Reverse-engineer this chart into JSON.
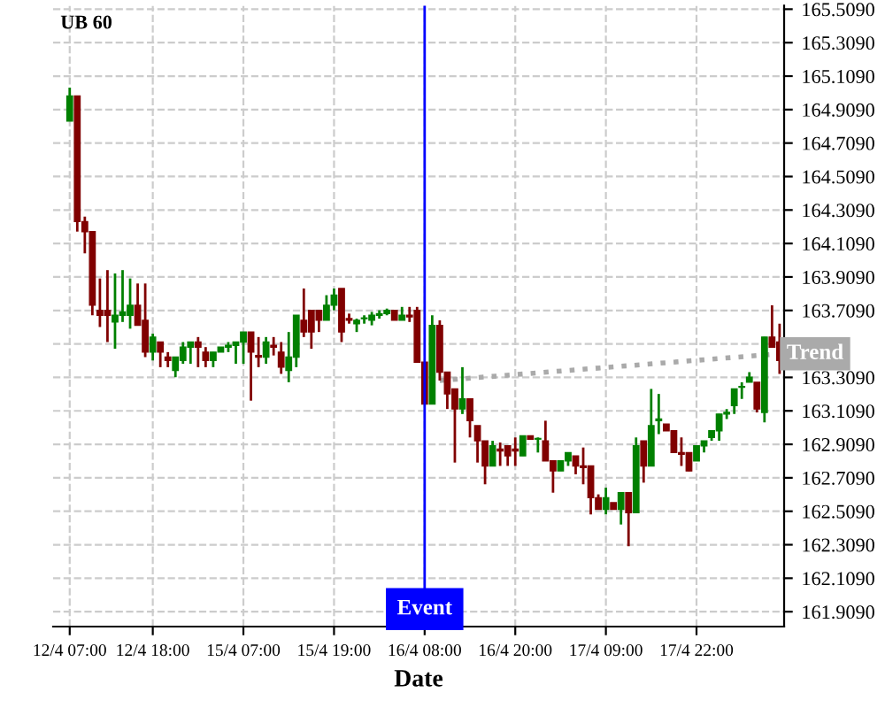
{
  "chart_data": {
    "type": "candlestick",
    "title": "UB 60",
    "xlabel": "Date",
    "categories": [
      "12/4 07:00",
      null,
      null,
      null,
      null,
      null,
      null,
      null,
      null,
      null,
      null,
      "12/4 18:00",
      null,
      null,
      null,
      null,
      null,
      null,
      null,
      null,
      null,
      null,
      null,
      "15/4 07:00",
      null,
      null,
      null,
      null,
      null,
      null,
      null,
      null,
      null,
      null,
      null,
      "15/4 19:00",
      null,
      null,
      null,
      null,
      null,
      null,
      null,
      null,
      null,
      null,
      null,
      "16/4 08:00",
      null,
      null,
      null,
      null,
      null,
      null,
      null,
      null,
      null,
      null,
      null,
      "16/4 20:00",
      null,
      null,
      null,
      null,
      null,
      null,
      null,
      null,
      null,
      null,
      null,
      "17/4 09:00",
      null,
      null,
      null,
      null,
      null,
      null,
      null,
      null,
      null,
      null,
      null,
      "17/4 22:00",
      null,
      null,
      null,
      null,
      null,
      null,
      null,
      null,
      null,
      null,
      null
    ],
    "ohlc": [
      [
        164.84,
        165.04,
        164.84,
        164.99
      ],
      [
        164.99,
        164.99,
        164.18,
        164.24
      ],
      [
        164.24,
        164.27,
        164.05,
        164.18
      ],
      [
        164.18,
        164.18,
        163.68,
        163.74
      ],
      [
        163.71,
        163.9,
        163.61,
        163.68
      ],
      [
        163.71,
        163.95,
        163.52,
        163.68
      ],
      [
        163.64,
        163.93,
        163.48,
        163.68
      ],
      [
        163.68,
        163.95,
        163.64,
        163.7
      ],
      [
        163.68,
        163.9,
        163.6,
        163.74
      ],
      [
        163.74,
        163.87,
        163.62,
        163.62
      ],
      [
        163.65,
        163.87,
        163.43,
        163.46
      ],
      [
        163.46,
        163.57,
        163.41,
        163.55
      ],
      [
        163.52,
        163.52,
        163.37,
        163.46
      ],
      [
        163.43,
        163.46,
        163.37,
        163.41
      ],
      [
        163.35,
        163.43,
        163.31,
        163.43
      ],
      [
        163.41,
        163.52,
        163.39,
        163.49
      ],
      [
        163.49,
        163.52,
        163.39,
        163.52
      ],
      [
        163.52,
        163.55,
        163.37,
        163.49
      ],
      [
        163.46,
        163.49,
        163.37,
        163.41
      ],
      [
        163.41,
        163.46,
        163.37,
        163.46
      ],
      [
        163.46,
        163.49,
        163.46,
        163.49
      ],
      [
        163.49,
        163.52,
        163.46,
        163.5
      ],
      [
        163.5,
        163.52,
        163.39,
        163.52
      ],
      [
        163.52,
        163.58,
        163.39,
        163.58
      ],
      [
        163.58,
        163.58,
        163.17,
        163.46
      ],
      [
        163.44,
        163.55,
        163.37,
        163.43
      ],
      [
        163.43,
        163.55,
        163.39,
        163.52
      ],
      [
        163.5,
        163.55,
        163.44,
        163.49
      ],
      [
        163.46,
        163.52,
        163.33,
        163.37
      ],
      [
        163.35,
        163.58,
        163.28,
        163.43
      ],
      [
        163.43,
        163.68,
        163.37,
        163.68
      ],
      [
        163.65,
        163.84,
        163.55,
        163.58
      ],
      [
        163.71,
        163.71,
        163.48,
        163.58
      ],
      [
        163.71,
        163.71,
        163.58,
        163.65
      ],
      [
        163.65,
        163.8,
        163.65,
        163.74
      ],
      [
        163.74,
        163.84,
        163.71,
        163.8
      ],
      [
        163.84,
        163.84,
        163.52,
        163.58
      ],
      [
        163.66,
        163.69,
        163.63,
        163.65
      ],
      [
        163.63,
        163.66,
        163.58,
        163.65
      ],
      [
        163.66,
        163.68,
        163.63,
        163.66
      ],
      [
        163.65,
        163.7,
        163.62,
        163.68
      ],
      [
        163.68,
        163.71,
        163.66,
        163.69
      ],
      [
        163.69,
        163.72,
        163.68,
        163.71
      ],
      [
        163.71,
        163.71,
        163.65,
        163.65
      ],
      [
        163.65,
        163.73,
        163.65,
        163.68
      ],
      [
        163.68,
        163.73,
        163.64,
        163.67
      ],
      [
        163.71,
        163.73,
        163.4,
        163.4
      ],
      [
        163.4,
        163.4,
        163.15,
        163.15
      ],
      [
        163.15,
        163.68,
        163.15,
        163.62
      ],
      [
        163.62,
        163.65,
        163.29,
        163.34
      ],
      [
        163.34,
        163.34,
        163.12,
        163.21
      ],
      [
        163.24,
        163.24,
        162.8,
        163.12
      ],
      [
        163.12,
        163.37,
        163.09,
        163.18
      ],
      [
        163.18,
        163.18,
        162.95,
        163.05
      ],
      [
        163.02,
        163.02,
        162.8,
        162.93
      ],
      [
        162.93,
        162.93,
        162.67,
        162.78
      ],
      [
        162.78,
        162.93,
        162.78,
        162.9
      ],
      [
        162.88,
        162.92,
        162.78,
        162.87
      ],
      [
        162.9,
        162.9,
        162.78,
        162.84
      ],
      [
        162.88,
        162.95,
        162.78,
        162.87
      ],
      [
        162.84,
        162.96,
        162.84,
        162.96
      ],
      [
        162.96,
        162.96,
        162.94,
        162.94
      ],
      [
        162.94,
        162.95,
        162.86,
        162.94
      ],
      [
        162.93,
        163.05,
        162.81,
        162.81
      ],
      [
        162.81,
        162.81,
        162.62,
        162.75
      ],
      [
        162.75,
        162.81,
        162.75,
        162.81
      ],
      [
        162.81,
        162.86,
        162.78,
        162.86
      ],
      [
        162.84,
        162.84,
        162.73,
        162.78
      ],
      [
        162.78,
        162.89,
        162.67,
        162.77
      ],
      [
        162.78,
        162.78,
        162.49,
        162.59
      ],
      [
        162.59,
        162.61,
        162.52,
        162.52
      ],
      [
        162.52,
        162.65,
        162.49,
        162.59
      ],
      [
        162.56,
        162.56,
        162.52,
        162.52
      ],
      [
        162.52,
        162.62,
        162.43,
        162.62
      ],
      [
        162.62,
        162.62,
        162.3,
        162.5
      ],
      [
        162.5,
        162.95,
        162.5,
        162.9
      ],
      [
        162.93,
        162.93,
        162.68,
        162.78
      ],
      [
        162.78,
        163.24,
        162.78,
        163.02
      ],
      [
        163.05,
        163.21,
        162.97,
        163.06
      ],
      [
        163.03,
        163.03,
        162.99,
        162.99
      ],
      [
        162.99,
        162.99,
        162.86,
        162.86
      ],
      [
        162.86,
        162.95,
        162.78,
        162.85
      ],
      [
        162.86,
        162.86,
        162.75,
        162.75
      ],
      [
        162.81,
        162.9,
        162.81,
        162.9
      ],
      [
        162.9,
        162.93,
        162.86,
        162.93
      ],
      [
        162.95,
        162.99,
        162.93,
        162.99
      ],
      [
        162.99,
        163.09,
        162.93,
        163.09
      ],
      [
        163.09,
        163.12,
        163.06,
        163.1
      ],
      [
        163.14,
        163.24,
        163.09,
        163.24
      ],
      [
        163.25,
        163.28,
        163.18,
        163.25
      ],
      [
        163.28,
        163.34,
        163.28,
        163.31
      ],
      [
        163.28,
        163.28,
        163.1,
        163.12
      ],
      [
        163.1,
        163.55,
        163.04,
        163.55
      ],
      [
        163.55,
        163.74,
        163.49,
        163.49
      ],
      [
        163.52,
        163.63,
        163.33,
        163.41
      ]
    ],
    "colors": [
      "#008000",
      "#800000",
      "#800000",
      "#800000",
      "#800000",
      "#800000",
      "#008000",
      "#008000",
      "#008000",
      "#800000",
      "#800000",
      "#008000",
      "#800000",
      "#800000",
      "#008000",
      "#008000",
      "#008000",
      "#800000",
      "#800000",
      "#008000",
      "#008000",
      "#008000",
      "#008000",
      "#008000",
      "#800000",
      "#800000",
      "#008000",
      "#800000",
      "#800000",
      "#008000",
      "#008000",
      "#800000",
      "#800000",
      "#800000",
      "#008000",
      "#008000",
      "#800000",
      "#800000",
      "#008000",
      "#008000",
      "#008000",
      "#008000",
      "#008000",
      "#800000",
      "#008000",
      "#800000",
      "#800000",
      "#800000",
      "#008000",
      "#800000",
      "#800000",
      "#800000",
      "#008000",
      "#800000",
      "#800000",
      "#800000",
      "#008000",
      "#800000",
      "#800000",
      "#800000",
      "#008000",
      "#800000",
      "#008000",
      "#800000",
      "#800000",
      "#008000",
      "#008000",
      "#800000",
      "#800000",
      "#800000",
      "#800000",
      "#008000",
      "#800000",
      "#008000",
      "#800000",
      "#008000",
      "#800000",
      "#008000",
      "#008000",
      "#800000",
      "#800000",
      "#800000",
      "#800000",
      "#008000",
      "#008000",
      "#008000",
      "#008000",
      "#008000",
      "#008000",
      "#008000",
      "#008000",
      "#800000",
      "#008000",
      "#800000",
      "#800000"
    ],
    "series": [
      {
        "type": "line",
        "name": "Trend",
        "color": "#aaaaaa",
        "line_style": "dotted",
        "values": [
          null,
          null,
          null,
          null,
          null,
          null,
          null,
          null,
          null,
          null,
          null,
          null,
          null,
          null,
          null,
          null,
          null,
          null,
          null,
          null,
          null,
          null,
          null,
          null,
          null,
          null,
          null,
          null,
          null,
          null,
          null,
          null,
          null,
          null,
          null,
          null,
          null,
          null,
          null,
          null,
          null,
          null,
          null,
          null,
          null,
          null,
          null,
          null,
          null,
          163.29,
          null,
          null,
          null,
          null,
          null,
          null,
          null,
          null,
          null,
          null,
          null,
          null,
          null,
          null,
          null,
          null,
          null,
          null,
          null,
          null,
          null,
          null,
          null,
          null,
          null,
          null,
          null,
          null,
          null,
          null,
          null,
          null,
          null,
          null,
          null,
          null,
          null,
          null,
          null,
          null,
          null,
          null,
          null,
          null,
          163.45
        ]
      }
    ],
    "ref_lines": [
      {
        "axis": "x",
        "value": "16/4 08:00",
        "label": "Event",
        "color": "#0000ff"
      }
    ],
    "ylim": [
      161.82,
      165.53
    ],
    "yticks": [
      {
        "value": 161.909,
        "label": "161.9090"
      },
      {
        "value": 162.109,
        "label": "162.1090"
      },
      {
        "value": 162.309,
        "label": "162.3090"
      },
      {
        "value": 162.509,
        "label": "162.5090"
      },
      {
        "value": 162.709,
        "label": "162.7090"
      },
      {
        "value": 162.909,
        "label": "162.9090"
      },
      {
        "value": 163.109,
        "label": "163.1090"
      },
      {
        "value": 163.309,
        "label": "163.3090"
      },
      {
        "value": 163.509,
        "label": null
      },
      {
        "value": 163.709,
        "label": "163.7090"
      },
      {
        "value": 163.909,
        "label": "163.9090"
      },
      {
        "value": 164.109,
        "label": "164.1090"
      },
      {
        "value": 164.309,
        "label": "164.3090"
      },
      {
        "value": 164.509,
        "label": "164.5090"
      },
      {
        "value": 164.709,
        "label": "164.7090"
      },
      {
        "value": 164.909,
        "label": "164.9090"
      },
      {
        "value": 165.109,
        "label": "165.1090"
      },
      {
        "value": 165.309,
        "label": "165.3090"
      },
      {
        "value": 165.509,
        "label": "165.5090"
      }
    ],
    "grid": true
  }
}
